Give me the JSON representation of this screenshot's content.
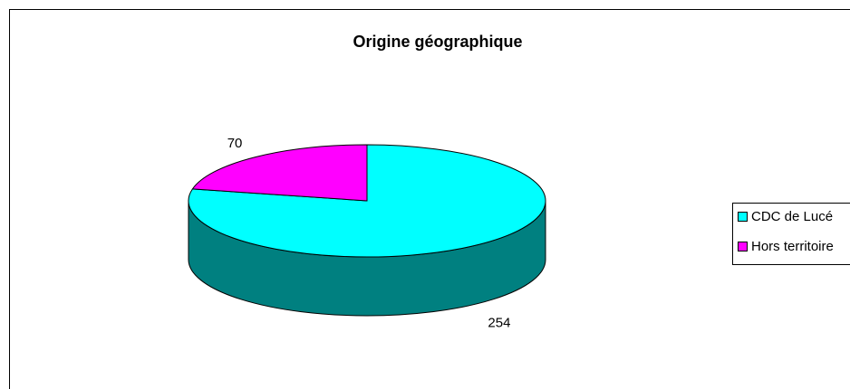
{
  "chart_data": {
    "type": "pie",
    "title": "Origine géographique",
    "categories": [
      "CDC de Lucé",
      "Hors territoire"
    ],
    "values": [
      254,
      70
    ],
    "colors": [
      "#00ffff",
      "#ff00ff"
    ]
  }
}
